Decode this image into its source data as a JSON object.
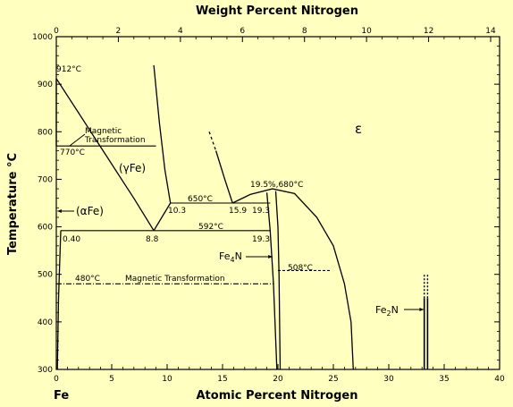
{
  "chart_data": {
    "type": "phase-diagram",
    "bottom_axis": {
      "label": "Atomic Percent Nitrogen",
      "range": [
        0,
        40
      ],
      "ticks": [
        0,
        5,
        10,
        15,
        20,
        25,
        30,
        35,
        40
      ],
      "tick_labels": [
        "0",
        "5",
        "10",
        "15",
        "20",
        "25",
        "30",
        "35",
        "40"
      ]
    },
    "top_axis": {
      "label": "Weight Percent Nitrogen",
      "ticks": [
        0,
        2,
        4,
        6,
        8,
        10,
        12,
        14
      ],
      "tick_labels": [
        "0",
        "2",
        "4",
        "6",
        "8",
        "10",
        "12",
        "14"
      ]
    },
    "left_axis": {
      "label": "Temperature °C",
      "range": [
        300,
        1000
      ],
      "ticks": [
        300,
        400,
        500,
        600,
        700,
        800,
        900,
        1000
      ],
      "tick_labels": [
        "300",
        "400",
        "500",
        "600",
        "700",
        "800",
        "900",
        "1000"
      ]
    },
    "corner_label": "Fe",
    "phase_labels": {
      "epsilon": "ε",
      "gamma": "(γFe)",
      "alpha": "(αFe)",
      "fe4n": "Fe",
      "fe4n_sub": "4",
      "fe4n_tail": "N",
      "fe2n": "Fe",
      "fe2n_sub": "2",
      "fe2n_tail": "N"
    },
    "annotations": {
      "t912": "912°C",
      "magnetic_1": "Magnetic",
      "magnetic_2": "Transformation",
      "t770": "770°C",
      "t650": "650°C",
      "p10_3": "10.3",
      "p15_9": "15.9",
      "p19_3_upper": "19.3",
      "peak": "19.5%,680°C",
      "t592": "592°C",
      "p0_40": "0.40",
      "p8_8": "8.8",
      "p19_3_lower": "19.3",
      "t480": "480°C",
      "magnetic_transformation": "Magnetic Transformation",
      "t508": "508°C"
    },
    "curves": {
      "alpha_solvus_high": [
        [
          0.0,
          912
        ],
        [
          0.0,
          770
        ]
      ],
      "alpha_gamma_upper": [
        [
          0.0,
          912
        ],
        [
          2.0,
          840
        ],
        [
          4.5,
          750
        ],
        [
          7.0,
          660
        ],
        [
          8.8,
          592
        ]
      ],
      "gamma_upper_boundary": [
        [
          8.8,
          940
        ],
        [
          9.3,
          820
        ],
        [
          9.8,
          720
        ],
        [
          10.3,
          650
        ]
      ],
      "gamma_eps_dashed": [
        [
          13.8,
          800
        ],
        [
          14.4,
          760
        ]
      ],
      "gamma_eps_solid": [
        [
          14.4,
          760
        ],
        [
          15.2,
          700
        ],
        [
          15.9,
          650
        ]
      ],
      "gamma_eutectoid_left": [
        [
          8.8,
          592
        ],
        [
          10.3,
          650
        ]
      ],
      "eps_dome": [
        [
          15.9,
          650
        ],
        [
          17.5,
          668
        ],
        [
          19.5,
          680
        ],
        [
          21.5,
          670
        ],
        [
          23.5,
          620
        ],
        [
          25.0,
          560
        ],
        [
          26.0,
          480
        ],
        [
          26.6,
          400
        ],
        [
          26.8,
          300
        ]
      ],
      "fe4n_left": [
        [
          19.0,
          672
        ],
        [
          19.3,
          592
        ],
        [
          19.6,
          480
        ],
        [
          19.9,
          300
        ]
      ],
      "fe4n_right": [
        [
          19.8,
          675
        ],
        [
          20.0,
          600
        ],
        [
          20.1,
          500
        ],
        [
          20.2,
          300
        ]
      ],
      "alpha_solvus_low": [
        [
          0.4,
          592
        ],
        [
          0.2,
          450
        ],
        [
          0.1,
          300
        ]
      ],
      "fe2n_lines": [
        [
          33.2,
          300
        ],
        [
          33.2,
          450
        ],
        [
          33.5,
          300
        ],
        [
          33.5,
          450
        ]
      ],
      "fe2n_dashed": [
        [
          33.2,
          450
        ],
        [
          33.2,
          500
        ],
        [
          33.5,
          450
        ],
        [
          33.5,
          500
        ]
      ]
    },
    "isotherms": {
      "t770_line": {
        "x": [
          0.0,
          9.0
        ],
        "y": 770
      },
      "t650_line": {
        "x": [
          10.3,
          19.3
        ],
        "y": 650
      },
      "t592_line": {
        "x": [
          0.4,
          19.3
        ],
        "y": 592
      },
      "t480_line": {
        "x": [
          0.0,
          19.6
        ],
        "y": 480,
        "style": "dash-dot"
      },
      "t508_line": {
        "x": [
          20.0,
          24.8
        ],
        "y": 508,
        "style": "dashed"
      }
    }
  }
}
